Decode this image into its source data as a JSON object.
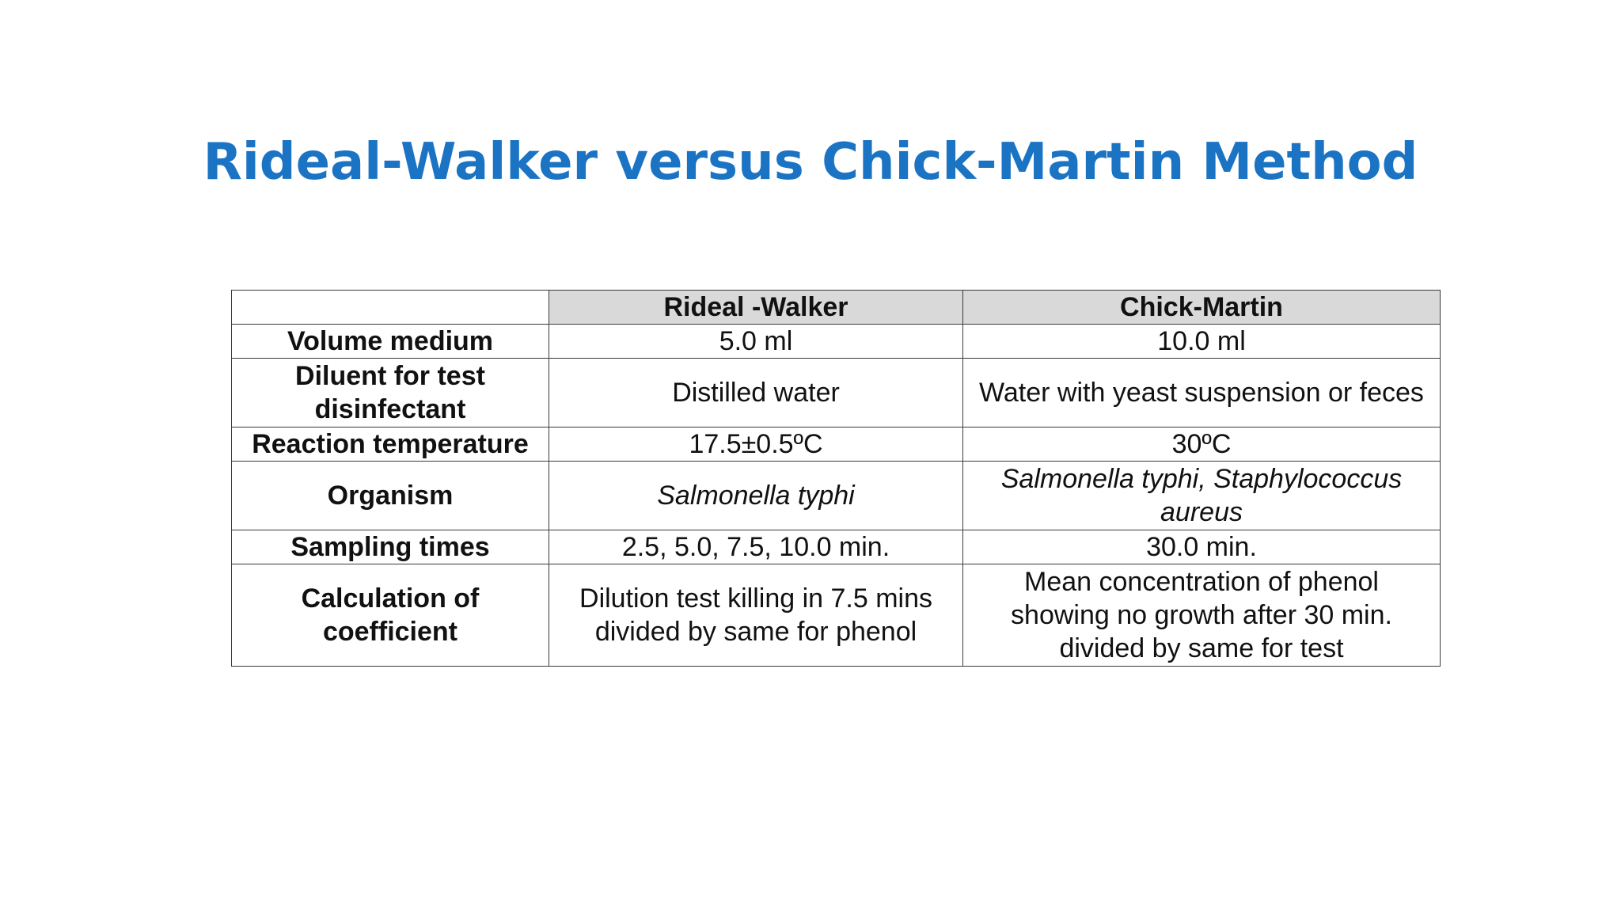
{
  "slide": {
    "title": "Rideal-Walker versus Chick-Martin Method"
  },
  "table": {
    "columns": [
      "",
      "Rideal -Walker",
      "Chick-Martin"
    ],
    "rows": [
      {
        "label": "Volume medium",
        "rideal_walker": "5.0 ml",
        "chick_martin": "10.0 ml"
      },
      {
        "label": "Diluent for test disinfectant",
        "rideal_walker": "Distilled water",
        "chick_martin": "Water with yeast suspension or feces"
      },
      {
        "label": "Reaction temperature",
        "rideal_walker": "17.5±0.5ºC",
        "chick_martin": "30ºC"
      },
      {
        "label": "Organism",
        "rideal_walker": "Salmonella typhi",
        "chick_martin": "Salmonella typhi, Staphylococcus aureus"
      },
      {
        "label": "Sampling times",
        "rideal_walker": "2.5, 5.0, 7.5, 10.0 min.",
        "chick_martin": "30.0 min."
      },
      {
        "label": "Calculation of coefficient",
        "rideal_walker": "Dilution test killing in 7.5 mins divided by same for phenol",
        "chick_martin": "Mean concentration of phenol showing no growth after 30 min. divided by same for test"
      }
    ]
  }
}
